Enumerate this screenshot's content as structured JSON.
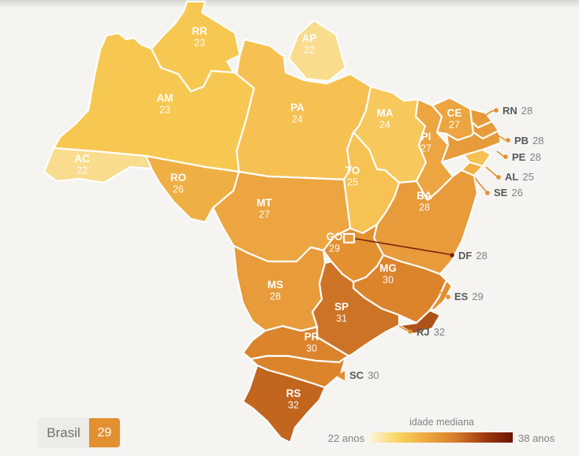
{
  "page_background": "#F5F4F1",
  "map": {
    "states": [
      {
        "code": "RR",
        "value": "23",
        "color": "#F7C851",
        "label": "inline"
      },
      {
        "code": "AP",
        "value": "22",
        "color": "#F9DC8D",
        "label": "inline"
      },
      {
        "code": "AM",
        "value": "23",
        "color": "#F7C851",
        "label": "inline"
      },
      {
        "code": "PA",
        "value": "24",
        "color": "#F6C152",
        "label": "inline"
      },
      {
        "code": "MA",
        "value": "24",
        "color": "#F7C85C",
        "label": "inline"
      },
      {
        "code": "CE",
        "value": "27",
        "color": "#ECA540",
        "label": "inline"
      },
      {
        "code": "RN",
        "value": "28",
        "color": "#E79B3A",
        "label": "callout"
      },
      {
        "code": "PB",
        "value": "28",
        "color": "#E79B3A",
        "label": "callout"
      },
      {
        "code": "PE",
        "value": "28",
        "color": "#E79B3A",
        "label": "callout"
      },
      {
        "code": "PI",
        "value": "27",
        "color": "#ECA540",
        "label": "inline"
      },
      {
        "code": "AL",
        "value": "25",
        "color": "#F5C253",
        "label": "callout"
      },
      {
        "code": "SE",
        "value": "26",
        "color": "#F0AF45",
        "label": "callout"
      },
      {
        "code": "TO",
        "value": "25",
        "color": "#F5C253",
        "label": "inline"
      },
      {
        "code": "BA",
        "value": "28",
        "color": "#E79B3A",
        "label": "inline"
      },
      {
        "code": "RO",
        "value": "26",
        "color": "#F0AF45",
        "label": "inline"
      },
      {
        "code": "AC",
        "value": "22",
        "color": "#F9DC8D",
        "label": "inline"
      },
      {
        "code": "MT",
        "value": "27",
        "color": "#ECA540",
        "label": "inline"
      },
      {
        "code": "GO",
        "value": "29",
        "color": "#E29030",
        "label": "inline"
      },
      {
        "code": "DF",
        "value": "28",
        "color": "#E79B3A",
        "label": "callout"
      },
      {
        "code": "MS",
        "value": "28",
        "color": "#E79B3A",
        "label": "inline"
      },
      {
        "code": "MG",
        "value": "30",
        "color": "#DB842C",
        "label": "inline"
      },
      {
        "code": "ES",
        "value": "29",
        "color": "#E29030",
        "label": "callout"
      },
      {
        "code": "SP",
        "value": "31",
        "color": "#CD7326",
        "label": "inline"
      },
      {
        "code": "RJ",
        "value": "32",
        "color": "#B0531A",
        "label": "callout"
      },
      {
        "code": "PR",
        "value": "30",
        "color": "#DB842C",
        "label": "inline"
      },
      {
        "code": "SC",
        "value": "30",
        "color": "#DB842C",
        "label": "callout"
      },
      {
        "code": "RS",
        "value": "32",
        "color": "#C2651F",
        "label": "inline"
      }
    ],
    "leader_color": "#E29030",
    "df_leader_color": "#7E1E04"
  },
  "summary": {
    "label": "Brasil",
    "value": "29",
    "value_bg": "#E29030"
  },
  "legend": {
    "title": "idade mediana",
    "min_label": "22 anos",
    "max_label": "38 anos",
    "gradient": [
      "#FDF5DE",
      "#F8D55F",
      "#EDA73F",
      "#D67E2A",
      "#A23A10",
      "#6B1503"
    ]
  },
  "chart_data": {
    "type": "heatmap",
    "title": "idade mediana",
    "unit": "anos",
    "scale": {
      "min": 22,
      "max": 38,
      "min_label": "22 anos",
      "max_label": "38 anos"
    },
    "national": {
      "name": "Brasil",
      "value": 29
    },
    "categories": [
      "RR",
      "AP",
      "AM",
      "PA",
      "MA",
      "CE",
      "RN",
      "PB",
      "PE",
      "PI",
      "AL",
      "SE",
      "TO",
      "BA",
      "RO",
      "AC",
      "MT",
      "GO",
      "DF",
      "MS",
      "MG",
      "ES",
      "SP",
      "RJ",
      "PR",
      "SC",
      "RS"
    ],
    "values": [
      23,
      22,
      23,
      24,
      24,
      27,
      28,
      28,
      28,
      27,
      25,
      26,
      25,
      28,
      26,
      22,
      27,
      29,
      28,
      28,
      30,
      29,
      31,
      32,
      30,
      30,
      32
    ]
  }
}
